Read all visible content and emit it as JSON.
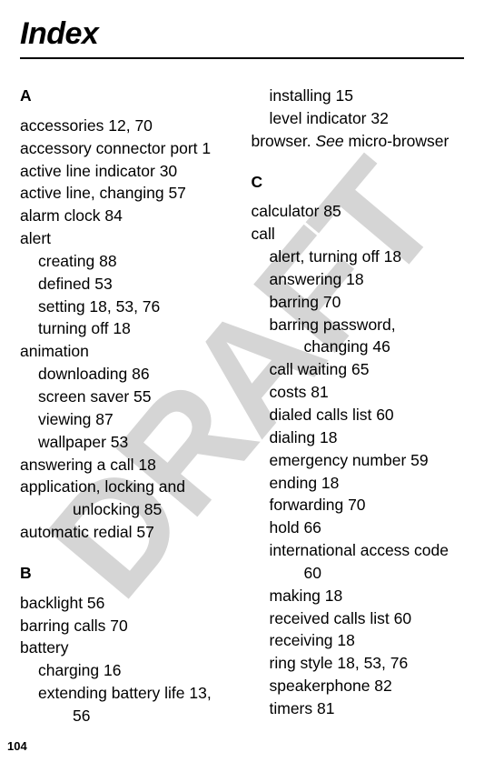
{
  "title": "Index",
  "pageNumber": "104",
  "watermark": "DRAFT",
  "left": {
    "A": {
      "letter": "A",
      "items": [
        {
          "text": "accessories  12, 70",
          "cls": "entry"
        },
        {
          "text": "accessory connector port  1",
          "cls": "entry"
        },
        {
          "text": "active line indicator  30",
          "cls": "entry"
        },
        {
          "text": "active line, changing  57",
          "cls": "entry"
        },
        {
          "text": "alarm clock  84",
          "cls": "entry"
        },
        {
          "text": "alert",
          "cls": "entry"
        },
        {
          "text": "creating  88",
          "cls": "sub1"
        },
        {
          "text": "defined  53",
          "cls": "sub1"
        },
        {
          "text": "setting  18, 53, 76",
          "cls": "sub1"
        },
        {
          "text": "turning off  18",
          "cls": "sub1"
        },
        {
          "text": "animation",
          "cls": "entry"
        },
        {
          "text": "downloading  86",
          "cls": "sub1"
        },
        {
          "text": "screen saver  55",
          "cls": "sub1"
        },
        {
          "text": "viewing  87",
          "cls": "sub1"
        },
        {
          "text": "wallpaper  53",
          "cls": "sub1"
        },
        {
          "text": "answering a call  18",
          "cls": "entry"
        },
        {
          "text": "application, locking and",
          "cls": "entry"
        },
        {
          "text": "unlocking  85",
          "cls": "sub2"
        },
        {
          "text": "automatic redial  57",
          "cls": "entry"
        }
      ]
    },
    "B": {
      "letter": "B",
      "items": [
        {
          "text": "backlight  56",
          "cls": "entry"
        },
        {
          "text": "barring calls  70",
          "cls": "entry"
        },
        {
          "text": "battery",
          "cls": "entry"
        },
        {
          "text": "charging  16",
          "cls": "sub1"
        },
        {
          "text": "extending battery life  13,",
          "cls": "sub1"
        },
        {
          "text": "56",
          "cls": "sub2"
        }
      ]
    }
  },
  "right": {
    "head": [
      {
        "text": "installing  15",
        "cls": "sub1"
      },
      {
        "text": "level indicator  32",
        "cls": "sub1"
      }
    ],
    "browserLine": {
      "pre": "browser. ",
      "see": "See",
      "post": " micro-browser"
    },
    "C": {
      "letter": "C",
      "items": [
        {
          "text": "calculator  85",
          "cls": "entry"
        },
        {
          "text": "call",
          "cls": "entry"
        },
        {
          "text": "alert, turning off  18",
          "cls": "sub1"
        },
        {
          "text": "answering  18",
          "cls": "sub1"
        },
        {
          "text": "barring  70",
          "cls": "sub1"
        },
        {
          "text": "barring password,",
          "cls": "sub1"
        },
        {
          "text": "changing  46",
          "cls": "sub2"
        },
        {
          "text": "call waiting  65",
          "cls": "sub1"
        },
        {
          "text": "costs  81",
          "cls": "sub1"
        },
        {
          "text": "dialed calls list  60",
          "cls": "sub1"
        },
        {
          "text": "dialing  18",
          "cls": "sub1"
        },
        {
          "text": "emergency number  59",
          "cls": "sub1"
        },
        {
          "text": "ending  18",
          "cls": "sub1"
        },
        {
          "text": "forwarding  70",
          "cls": "sub1"
        },
        {
          "text": "hold  66",
          "cls": "sub1"
        },
        {
          "text": "international access code",
          "cls": "sub1"
        },
        {
          "text": "60",
          "cls": "sub2"
        },
        {
          "text": "making  18",
          "cls": "sub1"
        },
        {
          "text": "received calls list  60",
          "cls": "sub1"
        },
        {
          "text": "receiving  18",
          "cls": "sub1"
        },
        {
          "text": "ring style  18, 53, 76",
          "cls": "sub1"
        },
        {
          "text": "speakerphone  82",
          "cls": "sub1"
        },
        {
          "text": "timers  81",
          "cls": "sub1"
        }
      ]
    }
  }
}
